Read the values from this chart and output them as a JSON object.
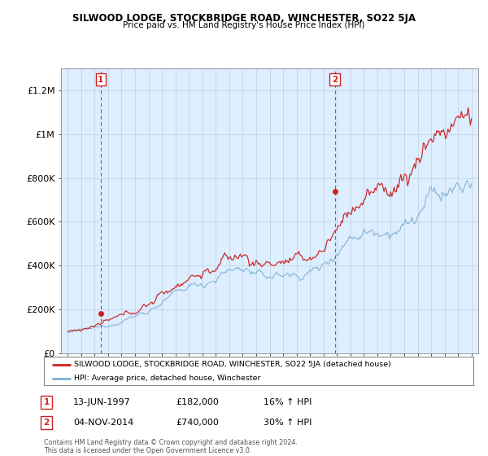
{
  "title": "SILWOOD LODGE, STOCKBRIDGE ROAD, WINCHESTER, SO22 5JA",
  "subtitle": "Price paid vs. HM Land Registry's House Price Index (HPI)",
  "legend_line1": "SILWOOD LODGE, STOCKBRIDGE ROAD, WINCHESTER, SO22 5JA (detached house)",
  "legend_line2": "HPI: Average price, detached house, Winchester",
  "footnote1": "Contains HM Land Registry data © Crown copyright and database right 2024.",
  "footnote2": "This data is licensed under the Open Government Licence v3.0.",
  "table_row1": [
    "1",
    "13-JUN-1997",
    "£182,000",
    "16% ↑ HPI"
  ],
  "table_row2": [
    "2",
    "04-NOV-2014",
    "£740,000",
    "30% ↑ HPI"
  ],
  "sale1_year": 1997.45,
  "sale1_price": 182000,
  "sale2_year": 2014.84,
  "sale2_price": 740000,
  "hpi_color": "#7bafd4",
  "price_color": "#cc2222",
  "vline_color": "#cc2222",
  "background_color": "#ffffff",
  "plot_bg_color": "#ddeeff",
  "ylim_max": 1300000,
  "xlim_min": 1994.5,
  "xlim_max": 2025.5,
  "hpi_base_points": [
    [
      1995.0,
      95000
    ],
    [
      1996.0,
      105000
    ],
    [
      1997.0,
      115000
    ],
    [
      1998.0,
      130000
    ],
    [
      1999.0,
      150000
    ],
    [
      2000.0,
      170000
    ],
    [
      2001.0,
      195000
    ],
    [
      2002.0,
      230000
    ],
    [
      2003.0,
      270000
    ],
    [
      2004.0,
      305000
    ],
    [
      2005.0,
      320000
    ],
    [
      2006.0,
      345000
    ],
    [
      2007.0,
      375000
    ],
    [
      2008.0,
      390000
    ],
    [
      2008.5,
      380000
    ],
    [
      2009.0,
      355000
    ],
    [
      2009.5,
      345000
    ],
    [
      2010.0,
      355000
    ],
    [
      2011.0,
      360000
    ],
    [
      2012.0,
      355000
    ],
    [
      2013.0,
      370000
    ],
    [
      2014.0,
      400000
    ],
    [
      2015.0,
      470000
    ],
    [
      2016.0,
      530000
    ],
    [
      2017.0,
      560000
    ],
    [
      2018.0,
      565000
    ],
    [
      2019.0,
      570000
    ],
    [
      2020.0,
      575000
    ],
    [
      2021.0,
      620000
    ],
    [
      2022.0,
      710000
    ],
    [
      2023.0,
      730000
    ],
    [
      2024.0,
      750000
    ],
    [
      2025.0,
      760000
    ]
  ],
  "price_base_points": [
    [
      1995.0,
      100000
    ],
    [
      1996.0,
      110000
    ],
    [
      1997.0,
      125000
    ],
    [
      1998.0,
      145000
    ],
    [
      1999.0,
      168000
    ],
    [
      2000.0,
      195000
    ],
    [
      2001.0,
      225000
    ],
    [
      2002.0,
      268000
    ],
    [
      2003.0,
      310000
    ],
    [
      2004.0,
      350000
    ],
    [
      2005.0,
      365000
    ],
    [
      2006.0,
      390000
    ],
    [
      2007.0,
      430000
    ],
    [
      2008.0,
      450000
    ],
    [
      2008.5,
      430000
    ],
    [
      2009.0,
      410000
    ],
    [
      2009.5,
      400000
    ],
    [
      2010.0,
      415000
    ],
    [
      2011.0,
      420000
    ],
    [
      2012.0,
      415000
    ],
    [
      2013.0,
      435000
    ],
    [
      2014.0,
      475000
    ],
    [
      2015.0,
      570000
    ],
    [
      2016.0,
      660000
    ],
    [
      2017.0,
      710000
    ],
    [
      2018.0,
      730000
    ],
    [
      2019.0,
      760000
    ],
    [
      2020.0,
      790000
    ],
    [
      2021.0,
      870000
    ],
    [
      2022.0,
      1000000
    ],
    [
      2023.0,
      1020000
    ],
    [
      2024.0,
      1060000
    ],
    [
      2025.0,
      1080000
    ]
  ]
}
